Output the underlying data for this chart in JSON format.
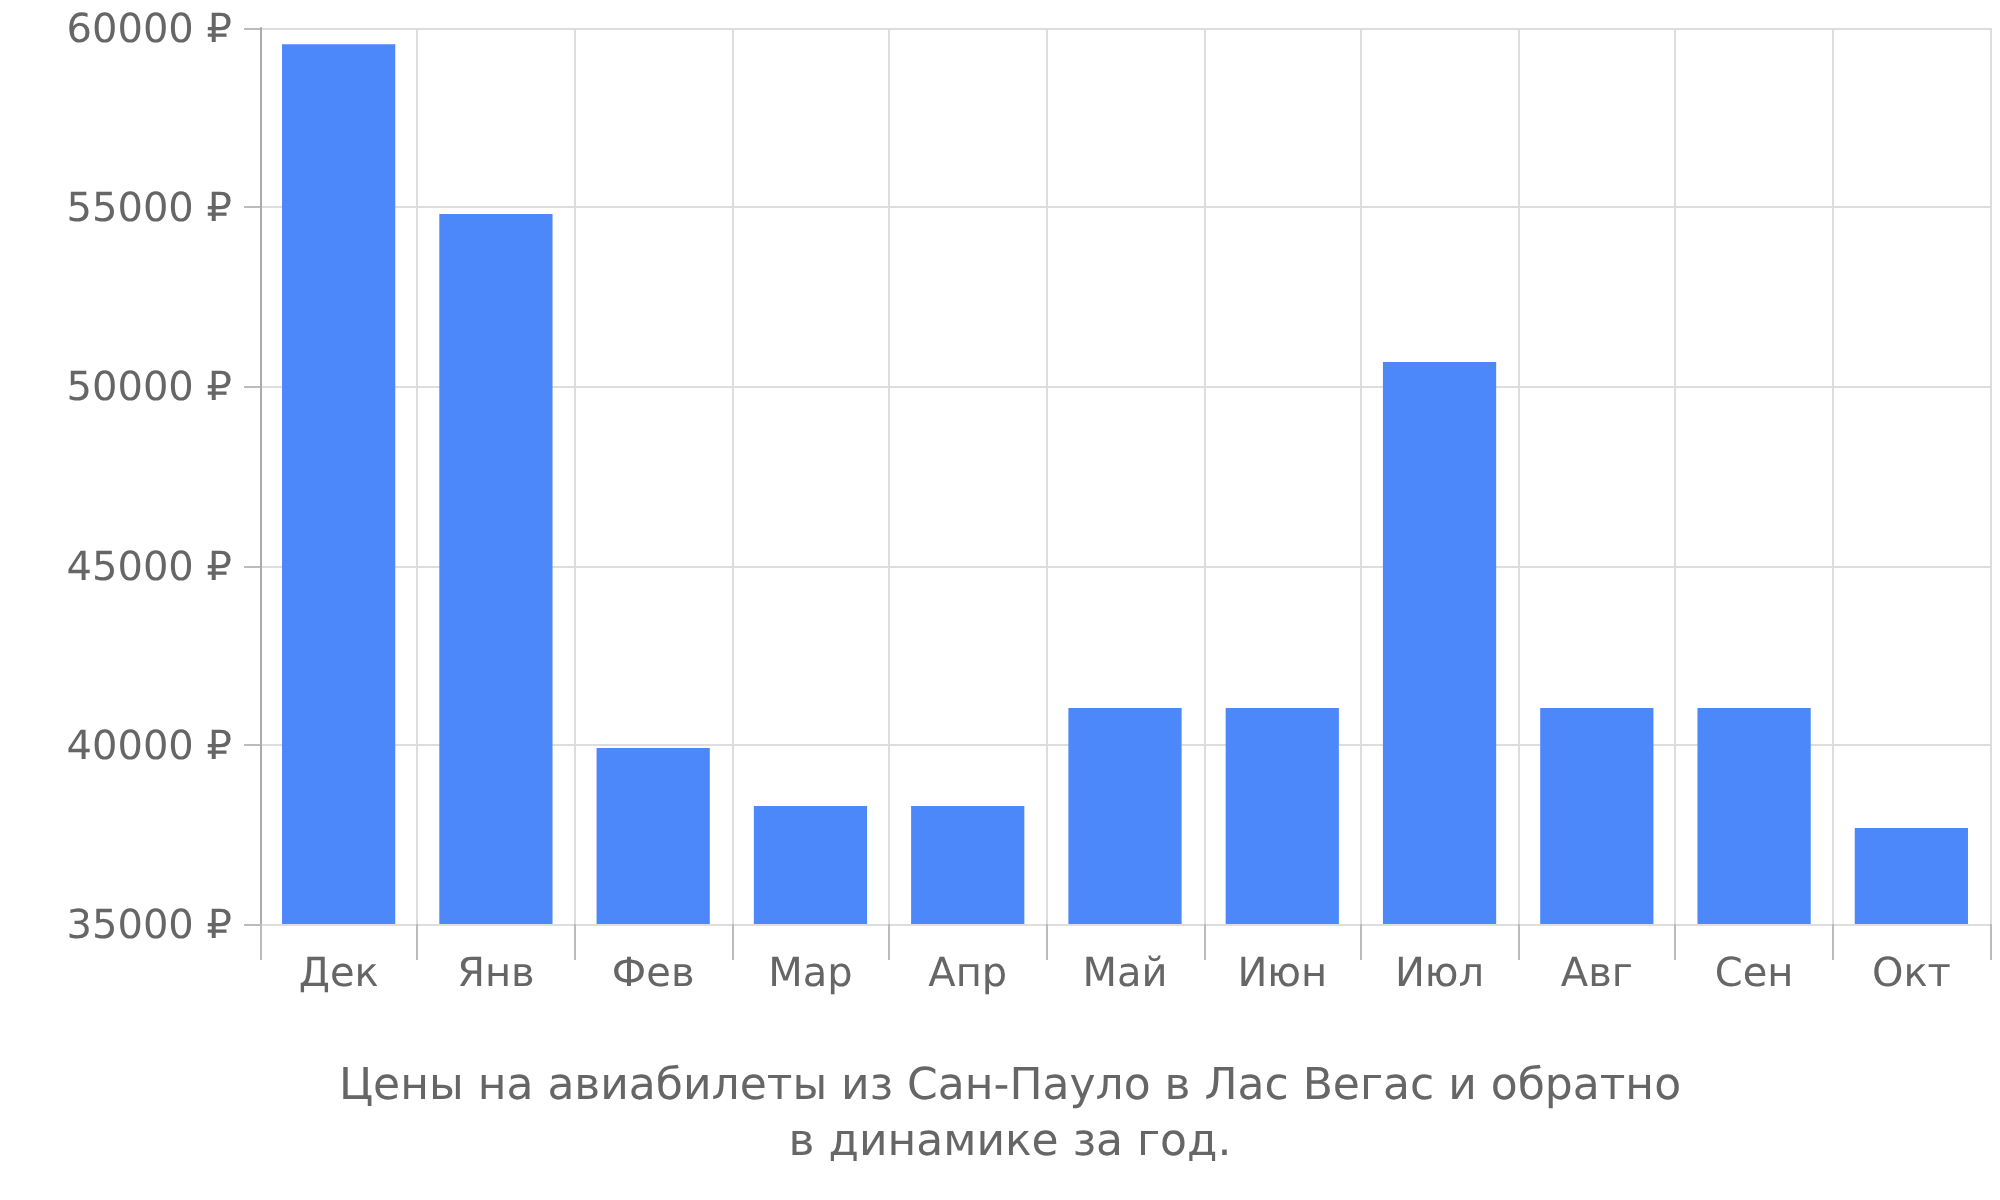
{
  "chart_data": {
    "type": "bar",
    "title": "Цены на авиабилеты из Сан-Пауло в Лас Вегас и обратно\nв динамике за год.",
    "categories": [
      "Дек",
      "Янв",
      "Фев",
      "Мар",
      "Апр",
      "Май",
      "Июн",
      "Июл",
      "Авг",
      "Сен",
      "Окт"
    ],
    "values": [
      59550,
      54810,
      39910,
      38290,
      38290,
      41030,
      41030,
      50680,
      41030,
      41030,
      37680
    ],
    "color": "#4d88fa",
    "ylim": [
      35000,
      60000
    ],
    "yticks": [
      {
        "value": 35000,
        "label": "35000 ₽"
      },
      {
        "value": 40000,
        "label": "40000 ₽"
      },
      {
        "value": 45000,
        "label": "45000 ₽"
      },
      {
        "value": 50000,
        "label": "50000 ₽"
      },
      {
        "value": 55000,
        "label": "55000 ₽"
      },
      {
        "value": 60000,
        "label": "60000 ₽"
      }
    ],
    "grid": true
  }
}
